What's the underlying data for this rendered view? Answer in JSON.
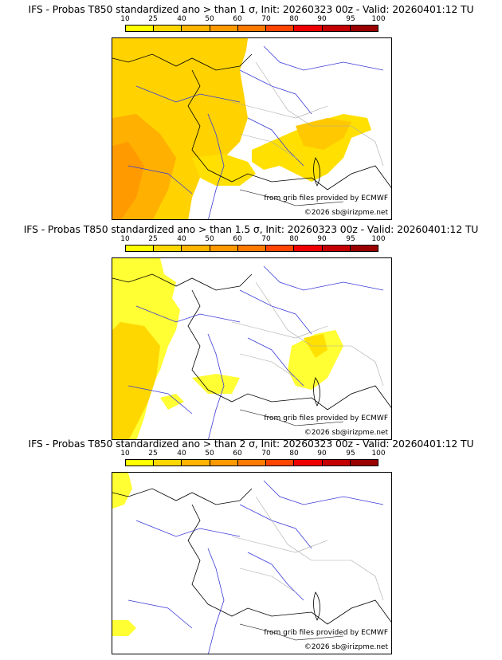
{
  "panels": [
    {
      "title": "IFS - Probas T850  standardized ano > than 1 σ, Init: 20260323 00z - Valid: 20260401:12 TU",
      "credit_source": "from grib files provided by ECMWF",
      "credit_copyright": "©2026 sb@irizpme.net"
    },
    {
      "title": "IFS - Probas T850  standardized ano > than 1.5 σ, Init: 20260323 00z - Valid: 20260401:12 TU",
      "credit_source": "from grib files provided by ECMWF",
      "credit_copyright": "©2026 sb@irizpme.net"
    },
    {
      "title": "IFS - Probas T850  standardized ano > than 2 σ, Init: 20260323 00z - Valid: 20260401:12 TU",
      "credit_source": "from grib files provided by ECMWF",
      "credit_copyright": "©2026 sb@irizpme.net"
    }
  ],
  "legend": {
    "labels": [
      "10",
      "25",
      "40",
      "50",
      "60",
      "70",
      "80",
      "90",
      "95",
      "100"
    ],
    "colors": [
      "#ffff00",
      "#ffd700",
      "#ffb400",
      "#ff9900",
      "#ff7a00",
      "#ff4500",
      "#ee0000",
      "#c40000",
      "#9a0000",
      "#6a0000"
    ]
  }
}
